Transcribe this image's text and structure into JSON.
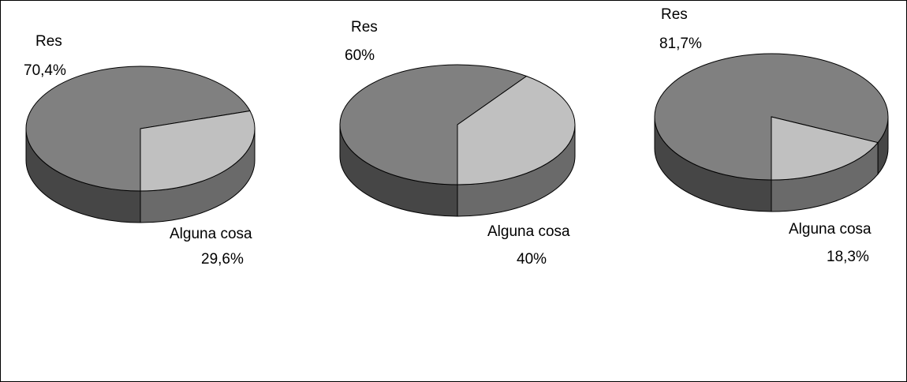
{
  "chart_data": [
    {
      "type": "pie",
      "categories": [
        "Res",
        "Alguna cosa"
      ],
      "values": [
        70.4,
        29.6
      ],
      "value_labels": [
        "70,4%",
        "29,6%"
      ],
      "colors": [
        "#808080",
        "#c0c0c0"
      ]
    },
    {
      "type": "pie",
      "categories": [
        "Res",
        "Alguna cosa"
      ],
      "values": [
        60,
        40
      ],
      "value_labels": [
        "60%",
        "40%"
      ],
      "colors": [
        "#808080",
        "#c0c0c0"
      ]
    },
    {
      "type": "pie",
      "categories": [
        "Res",
        "Alguna cosa"
      ],
      "values": [
        81.7,
        18.3
      ],
      "value_labels": [
        "81,7%",
        "18,3%"
      ],
      "colors": [
        "#808080",
        "#c0c0c0"
      ]
    }
  ]
}
